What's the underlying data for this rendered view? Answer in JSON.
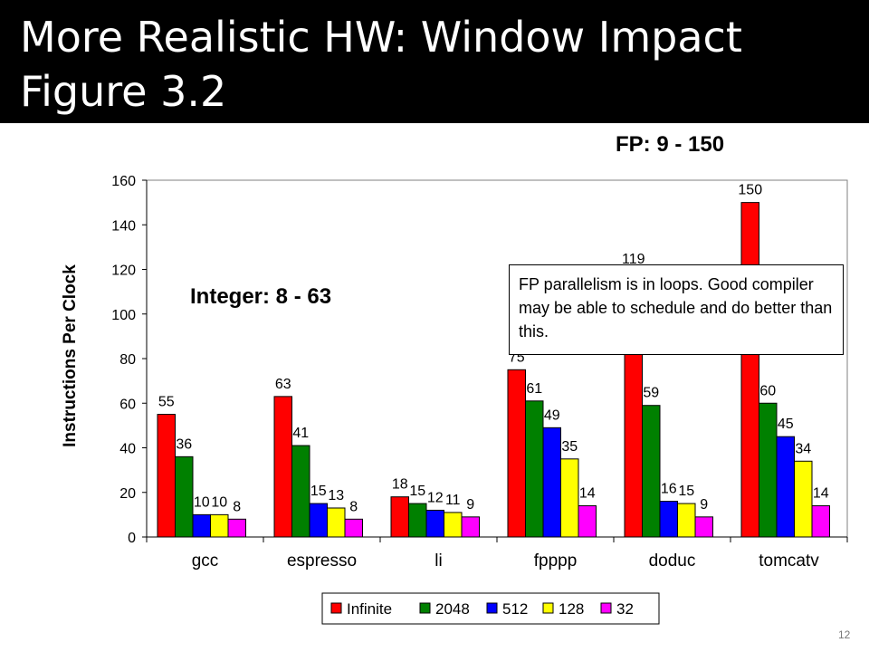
{
  "slide": {
    "title_line1": "More Realistic HW: Window Impact",
    "title_line2": "Figure 3.2",
    "fp_range": "FP: 9 - 150",
    "int_range": "Integer: 8 - 63",
    "note": "FP parallelism is in loops.  Good compiler may be able to schedule and do better than this.",
    "page_number": "12"
  },
  "chart_data": {
    "type": "bar",
    "title": "",
    "xlabel": "",
    "ylabel": "Instructions Per Clock",
    "ylim": [
      0,
      160
    ],
    "yticks": [
      0,
      20,
      40,
      60,
      80,
      100,
      120,
      140,
      160
    ],
    "grid": false,
    "legend_position": "bottom",
    "categories": [
      "gcc",
      "espresso",
      "li",
      "fpppp",
      "doduc",
      "tomcatv"
    ],
    "series": [
      {
        "name": "Infinite",
        "color": "#ff0000",
        "values": [
          55,
          63,
          18,
          75,
          119,
          150
        ]
      },
      {
        "name": "2048",
        "color": "#008000",
        "values": [
          36,
          41,
          15,
          61,
          59,
          60
        ]
      },
      {
        "name": "512",
        "color": "#0000ff",
        "values": [
          10,
          15,
          12,
          49,
          16,
          45
        ]
      },
      {
        "name": "128",
        "color": "#ffff00",
        "values": [
          10,
          13,
          11,
          35,
          15,
          34
        ]
      },
      {
        "name": "32",
        "color": "#ff00ff",
        "values": [
          8,
          8,
          9,
          14,
          9,
          14
        ]
      }
    ]
  }
}
